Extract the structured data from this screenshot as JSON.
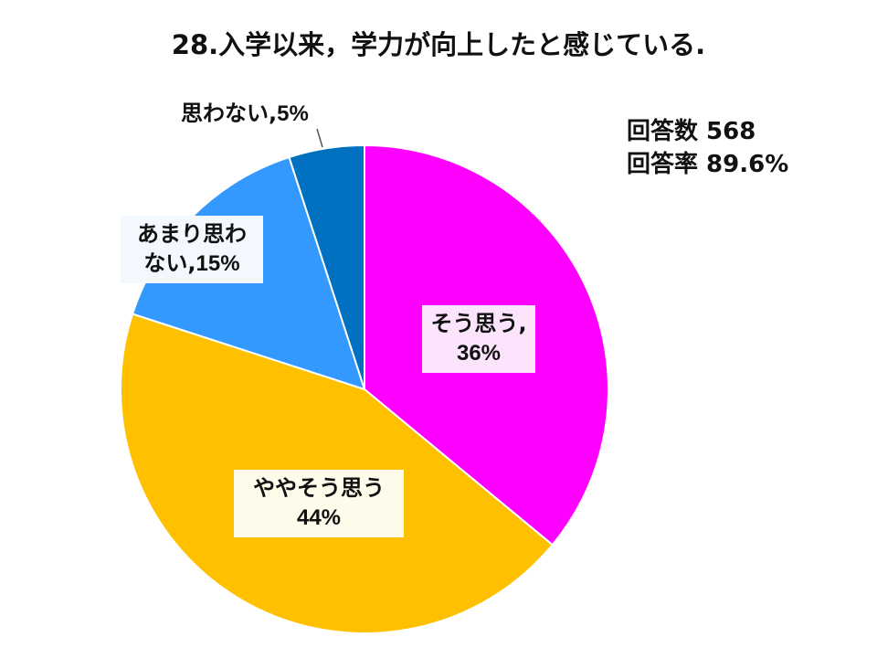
{
  "chart_data": {
    "type": "pie",
    "title": "28.入学以来，学力が向上したと感じている.",
    "slices": [
      {
        "label": "そう思う",
        "value": 36,
        "value_text": "36%",
        "color": "#FF00FF",
        "label_bg": "#FCE4FC",
        "separator": ",",
        "multiline": true
      },
      {
        "label": "ややそう思う",
        "value": 44,
        "value_text": "44%",
        "color": "#FFC000",
        "label_bg": "#FFFBEA",
        "separator": "",
        "multiline": true
      },
      {
        "label": "あまり思わ",
        "label2": "ない",
        "value": 15,
        "value_text": "15%",
        "color": "#3399FF",
        "label_bg": "#F3F8FE",
        "separator": ",",
        "multiline": true
      },
      {
        "label": "思わない",
        "value": 5,
        "value_text": "5%",
        "color": "#0070C0",
        "label_bg": "#FFFFFF",
        "separator": ",",
        "multiline": false
      }
    ],
    "start_angle_deg": 0,
    "direction": "clockwise"
  },
  "response_info": {
    "count_line": "回答数 568",
    "rate_line": "回答率 89.6%"
  }
}
